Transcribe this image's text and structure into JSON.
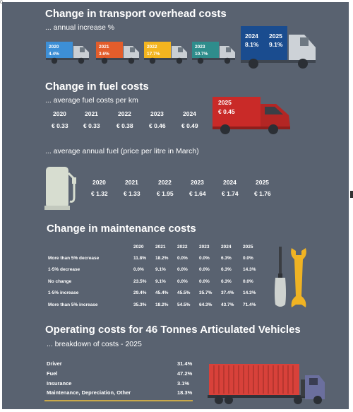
{
  "corner_label": "0",
  "transport": {
    "title": "Change in transport overhead costs",
    "subtitle": "... annual increase %",
    "trucks": [
      {
        "year": "2020",
        "value": "4.4%",
        "color": "#3d8fd6"
      },
      {
        "year": "2021",
        "value": "3.6%",
        "color": "#e35d2b"
      },
      {
        "year": "2022",
        "value": "17.7%",
        "color": "#f4b51f"
      },
      {
        "year": "2023",
        "value": "10.7%",
        "color": "#2f8d8c"
      }
    ],
    "big_truck": {
      "color": "#1a4c8f",
      "items": [
        {
          "year": "2024",
          "value": "8.1%"
        },
        {
          "year": "2025",
          "value": "9.1%"
        }
      ]
    }
  },
  "fuel": {
    "title": "Change in fuel costs",
    "subtitle_km": "... average fuel costs per km",
    "per_km": [
      {
        "year": "2020",
        "value": "€ 0.33"
      },
      {
        "year": "2021",
        "value": "€ 0.33"
      },
      {
        "year": "2022",
        "value": "€ 0.38"
      },
      {
        "year": "2023",
        "value": "€ 0.46"
      },
      {
        "year": "2024",
        "value": "€ 0.49"
      }
    ],
    "van": {
      "year": "2025",
      "value": "€ 0.45",
      "color": "#c92a28"
    },
    "subtitle_litre": "... average annual fuel (price per litre in March)",
    "per_litre": [
      {
        "year": "2020",
        "value": "€ 1.32"
      },
      {
        "year": "2021",
        "value": "€ 1.33"
      },
      {
        "year": "2022",
        "value": "€ 1.95"
      },
      {
        "year": "2023",
        "value": "€ 1.64"
      },
      {
        "year": "2024",
        "value": "€ 1.74"
      },
      {
        "year": "2025",
        "value": "€ 1.76"
      }
    ]
  },
  "maintenance": {
    "title": "Change in maintenance costs",
    "years": [
      "2020",
      "2021",
      "2022",
      "2023",
      "2024",
      "2025"
    ],
    "rows": [
      {
        "label": "More than 5% decrease",
        "values": [
          "11.8%",
          "18.2%",
          "0.0%",
          "0.0%",
          "6.3%",
          "0.0%"
        ]
      },
      {
        "label": "1-5% decrease",
        "values": [
          "0.0%",
          "9.1%",
          "0.0%",
          "0.0%",
          "6.3%",
          "14.3%"
        ]
      },
      {
        "label": "No change",
        "values": [
          "23.5%",
          "9.1%",
          "0.0%",
          "0.0%",
          "6.3%",
          "0.0%"
        ]
      },
      {
        "label": "1-5% increase",
        "values": [
          "29.4%",
          "45.4%",
          "45.5%",
          "35.7%",
          "37.4%",
          "14.3%"
        ]
      },
      {
        "label": "More than 5% increase",
        "values": [
          "35.3%",
          "18.2%",
          "54.5%",
          "64.3%",
          "43.7%",
          "71.4%"
        ]
      }
    ]
  },
  "operating": {
    "title": "Operating costs for 46 Tonnes Articulated Vehicles",
    "subtitle": "... breakdown of costs - 2025",
    "rows": [
      {
        "label": "Driver",
        "value": "31.4%"
      },
      {
        "label": "Fuel",
        "value": "47.2%"
      },
      {
        "label": "Insurance",
        "value": "3.1%"
      },
      {
        "label": "Maintenance, Depreciation, Other",
        "value": "18.3%"
      }
    ]
  },
  "colors": {
    "background": "#596270",
    "container": "#d8413a",
    "wrench": "#f0b323",
    "screwdriver_handle": "#cfd3d0",
    "pump": "#d7ddd0",
    "gold_line": "#c8a84a"
  }
}
